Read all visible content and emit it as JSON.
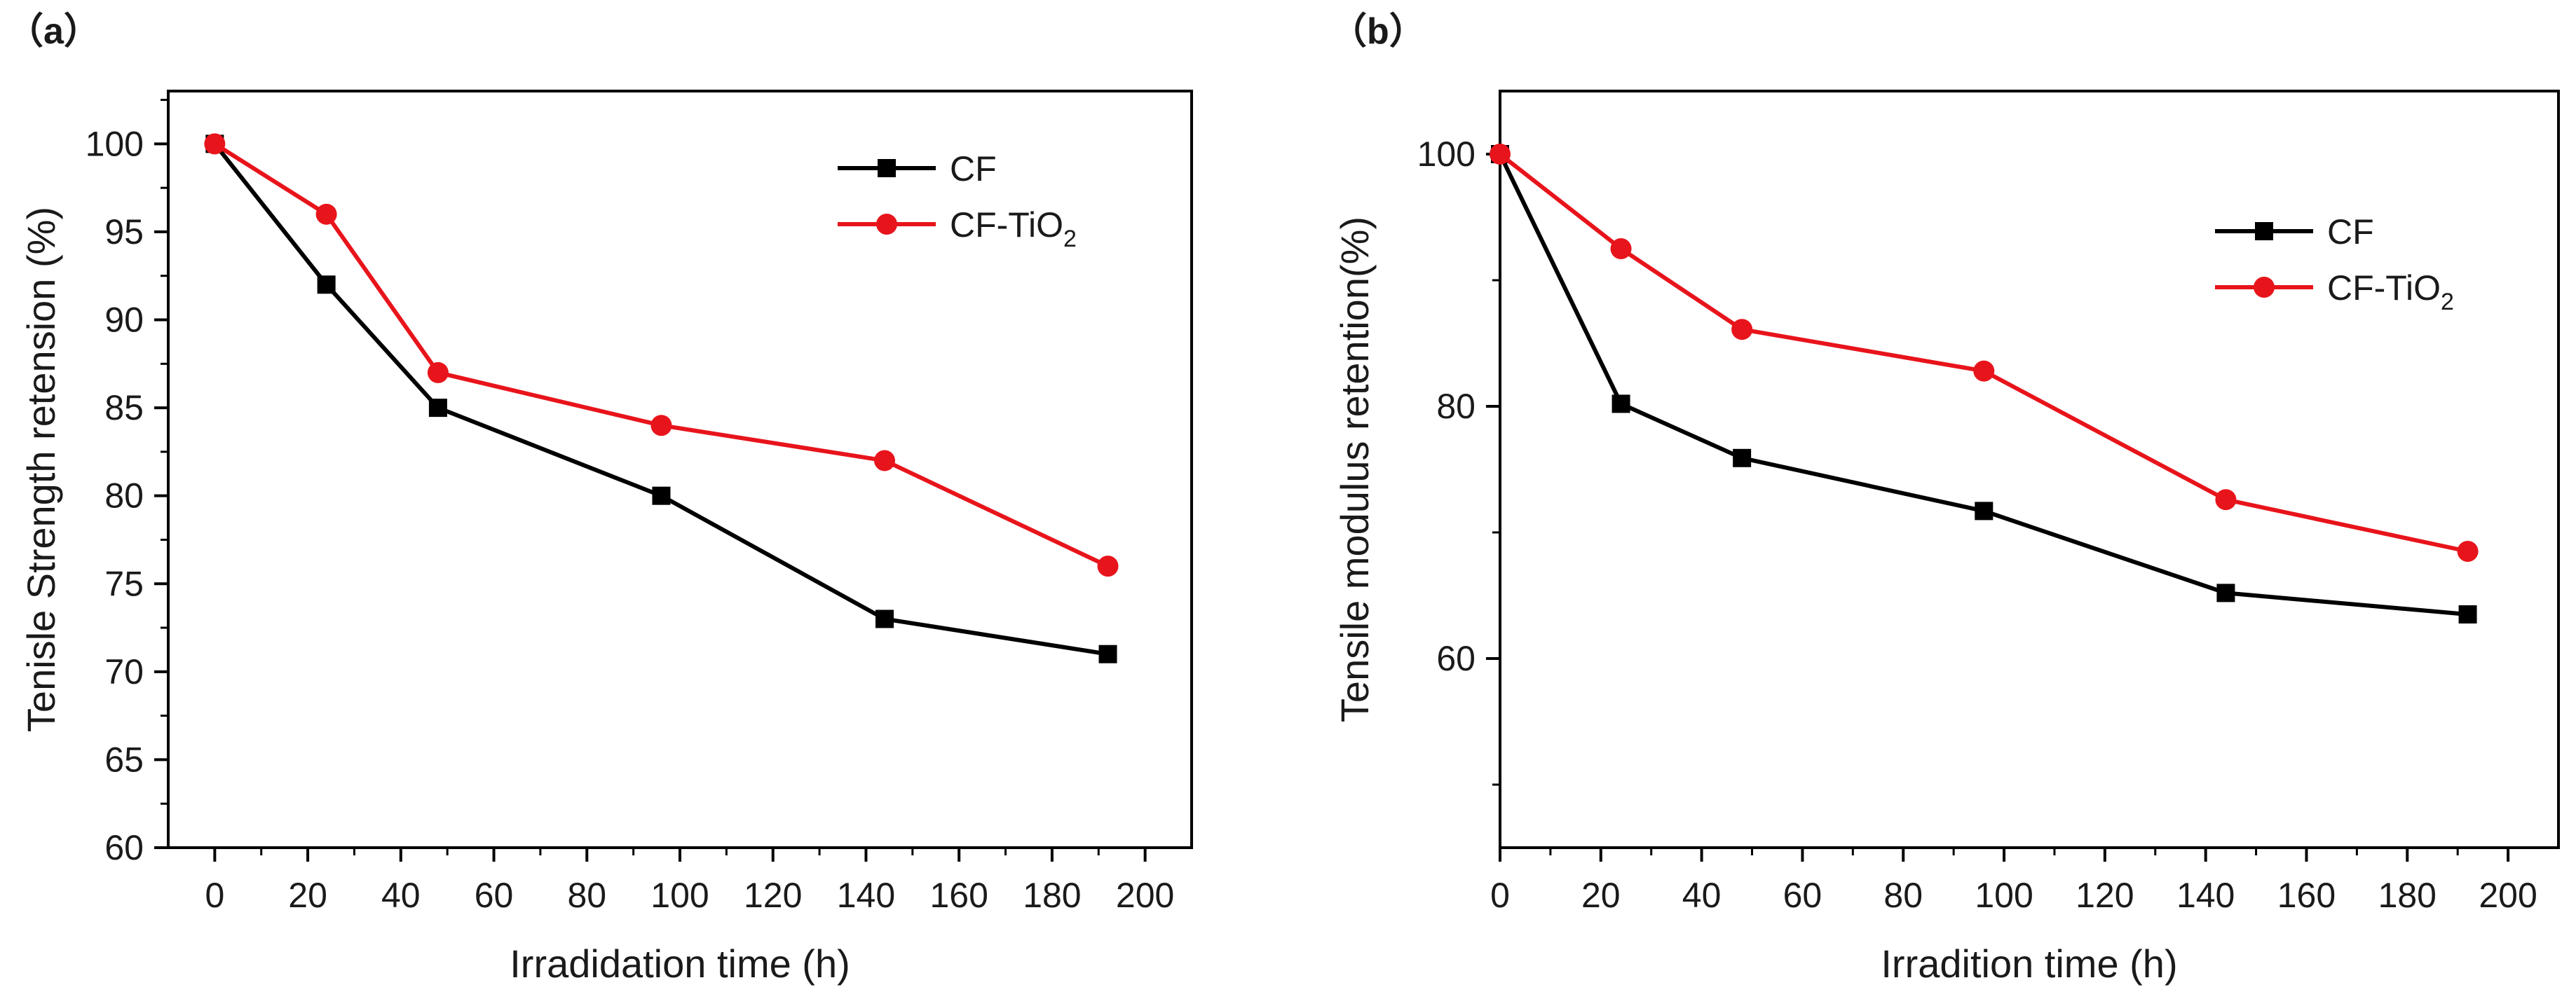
{
  "chart_data": [
    {
      "type": "line",
      "panel_label": "（a）",
      "title": "",
      "xlabel": "Irradidation time  (h)",
      "ylabel": "Tenisle Strength retension (%)",
      "xlim": [
        -10,
        210
      ],
      "ylim": [
        60,
        103
      ],
      "x_ticks": [
        0,
        20,
        40,
        60,
        80,
        100,
        120,
        140,
        160,
        180,
        200
      ],
      "y_ticks": [
        60,
        65,
        70,
        75,
        80,
        85,
        90,
        95,
        100
      ],
      "legend_position": "top-right",
      "series": [
        {
          "name": "CF",
          "legend_text": "CF",
          "legend_sub": "",
          "color": "#000000",
          "marker": "square",
          "x": [
            0,
            24,
            48,
            96,
            144,
            192
          ],
          "y": [
            100,
            92,
            85,
            80,
            73,
            71
          ]
        },
        {
          "name": "CF-TiO2",
          "legend_text": "CF-TiO",
          "legend_sub": "2",
          "color": "#e8141b",
          "marker": "circle",
          "x": [
            0,
            24,
            48,
            96,
            144,
            192
          ],
          "y": [
            100,
            96,
            87,
            84,
            82,
            76
          ]
        }
      ]
    },
    {
      "type": "line",
      "panel_label": "（b）",
      "title": "",
      "xlabel": "Irradition time (h)",
      "ylabel": "Tensile modulus retention(%)",
      "xlim": [
        0,
        210
      ],
      "ylim": [
        45,
        105
      ],
      "x_ticks": [
        0,
        20,
        40,
        60,
        80,
        100,
        120,
        140,
        160,
        180,
        200
      ],
      "y_ticks": [
        60,
        80,
        100
      ],
      "legend_position": "top-right",
      "series": [
        {
          "name": "CF",
          "legend_text": "CF",
          "legend_sub": "",
          "color": "#000000",
          "marker": "square",
          "x": [
            0,
            24,
            48,
            96,
            144,
            192
          ],
          "y": [
            100,
            80.2,
            75.9,
            71.7,
            65.2,
            63.5
          ]
        },
        {
          "name": "CF-TiO2",
          "legend_text": "CF-TiO",
          "legend_sub": "2",
          "color": "#e8141b",
          "marker": "circle",
          "x": [
            0,
            24,
            48,
            96,
            144,
            192
          ],
          "y": [
            100,
            92.5,
            86.1,
            82.8,
            72.6,
            68.5
          ]
        }
      ]
    }
  ]
}
